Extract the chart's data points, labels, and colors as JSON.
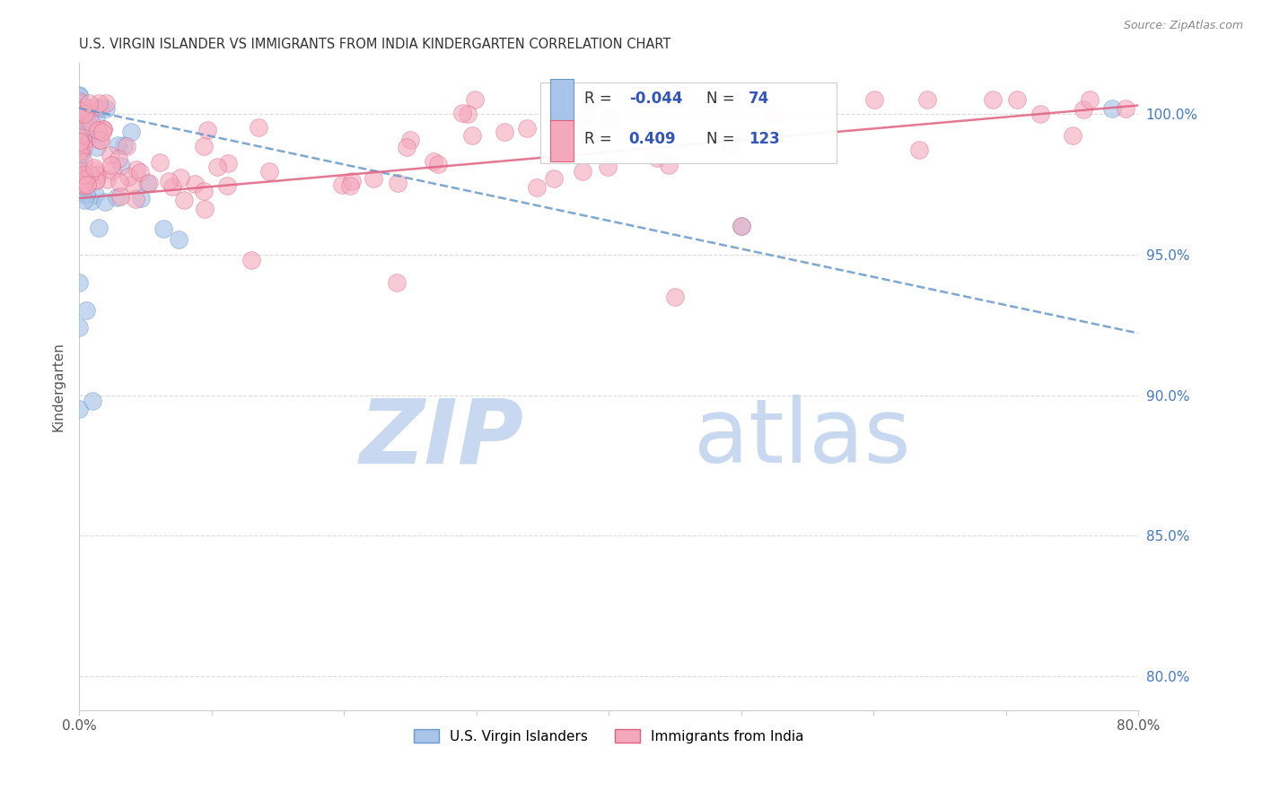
{
  "title": "U.S. VIRGIN ISLANDER VS IMMIGRANTS FROM INDIA KINDERGARTEN CORRELATION CHART",
  "source": "Source: ZipAtlas.com",
  "ylabel": "Kindergarten",
  "x_min": 0.0,
  "x_max": 0.8,
  "y_min": 0.788,
  "y_max": 1.018,
  "y_ticks": [
    0.8,
    0.85,
    0.9,
    0.95,
    1.0
  ],
  "y_tick_labels": [
    "80.0%",
    "85.0%",
    "90.0%",
    "95.0%",
    "100.0%"
  ],
  "x_ticks": [
    0.0,
    0.1,
    0.2,
    0.3,
    0.4,
    0.5,
    0.6,
    0.7,
    0.8
  ],
  "x_tick_labels": [
    "0.0%",
    "",
    "",
    "",
    "",
    "",
    "",
    "",
    "80.0%"
  ],
  "color_blue": "#A8C4E8",
  "color_pink": "#F4A8BC",
  "color_blue_line": "#6699CC",
  "color_pink_line": "#E06080",
  "color_r_value": "#3355BB",
  "watermark_zip_color": "#C8D8F0",
  "watermark_atlas_color": "#C8D8F0",
  "background_color": "#FFFFFF",
  "grid_color": "#CCCCCC",
  "title_color": "#333333",
  "source_color": "#888888",
  "blue_trend_x0": 0.0,
  "blue_trend_y0": 1.002,
  "blue_trend_x1": 0.8,
  "blue_trend_y1": 0.922,
  "pink_trend_x0": 0.0,
  "pink_trend_y0": 0.97,
  "pink_trend_x1": 0.8,
  "pink_trend_y1": 1.003
}
